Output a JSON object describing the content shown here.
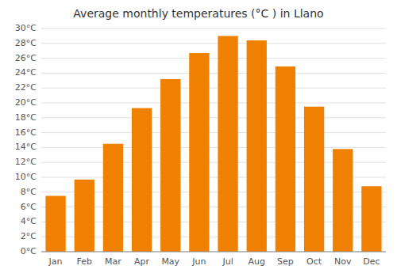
{
  "chart_data": {
    "type": "bar",
    "title": "Average monthly temperatures (°C ) in Llano",
    "categories": [
      "Jan",
      "Feb",
      "Mar",
      "Apr",
      "May",
      "Jun",
      "Jul",
      "Aug",
      "Sep",
      "Oct",
      "Nov",
      "Dec"
    ],
    "values": [
      7.5,
      9.7,
      14.5,
      19.3,
      23.2,
      26.7,
      29.0,
      28.4,
      24.9,
      19.5,
      13.8,
      8.8
    ],
    "color": "#F08000",
    "ylim": [
      0,
      30
    ],
    "yticks": [
      {
        "value": 0,
        "label": "0°C"
      },
      {
        "value": 2,
        "label": "2°C"
      },
      {
        "value": 4,
        "label": "4°C"
      },
      {
        "value": 6,
        "label": "6°C"
      },
      {
        "value": 8,
        "label": "8°C"
      },
      {
        "value": 10,
        "label": "10°C"
      },
      {
        "value": 12,
        "label": "12°C"
      },
      {
        "value": 14,
        "label": "14°C"
      },
      {
        "value": 16,
        "label": "16°C"
      },
      {
        "value": 18,
        "label": "18°C"
      },
      {
        "value": 20,
        "label": "20°C"
      },
      {
        "value": 22,
        "label": "22°C"
      },
      {
        "value": 24,
        "label": "24°C"
      },
      {
        "value": 26,
        "label": "26°C"
      },
      {
        "value": 28,
        "label": "28°C"
      },
      {
        "value": 30,
        "label": "30°C"
      }
    ],
    "grid": true
  }
}
